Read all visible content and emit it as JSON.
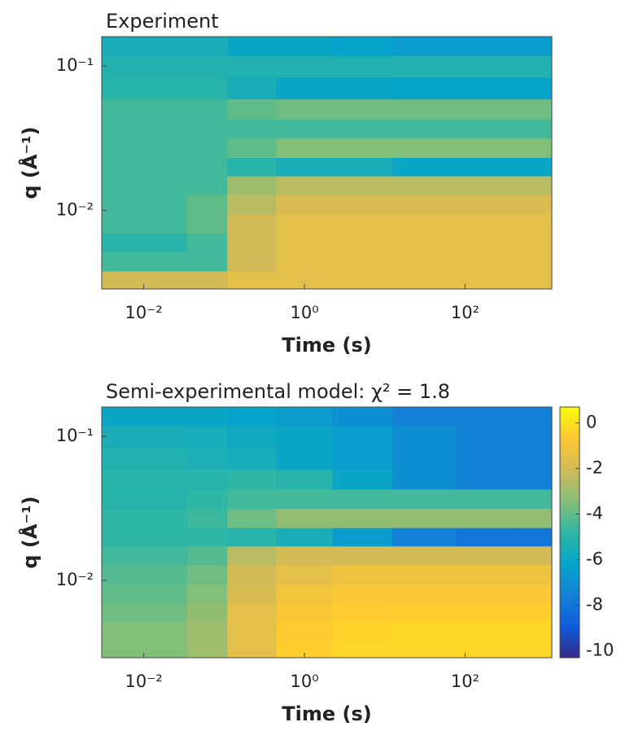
{
  "chart_data": [
    {
      "type": "heatmap",
      "title": "Experiment",
      "xlabel": "Time (s)",
      "ylabel": "q (Å⁻¹)",
      "xscale": "log",
      "yscale": "log",
      "colormap": "parula",
      "clim": [
        -10.3,
        0.7
      ],
      "xlim": [
        0.003,
        1200
      ],
      "ylim": [
        0.00285,
        0.16
      ],
      "xticks": [
        {
          "value": 0.01,
          "label": "10⁻²"
        },
        {
          "value": 1,
          "label": "10⁰"
        },
        {
          "value": 100,
          "label": "10²"
        }
      ],
      "yticks": [
        {
          "value": 0.01,
          "label": "10⁻²"
        },
        {
          "value": 0.1,
          "label": "10⁻¹"
        }
      ],
      "x": [
        0.005,
        0.02,
        0.06,
        0.2,
        1,
        5,
        30,
        200,
        900
      ],
      "y": [
        0.0032,
        0.0045,
        0.006,
        0.008,
        0.011,
        0.015,
        0.02,
        0.027,
        0.037,
        0.05,
        0.07,
        0.1,
        0.14
      ],
      "z": [
        [
          -2,
          -2,
          -2,
          -1.5,
          -1.5,
          -1.5,
          -1.5,
          -1.5,
          -1.5
        ],
        [
          -4.5,
          -4.5,
          -4.5,
          -2,
          -1.5,
          -1.5,
          -1.5,
          -1.5,
          -1.5
        ],
        [
          -5,
          -5,
          -4.5,
          -2,
          -1.5,
          -1.5,
          -1.5,
          -1.5,
          -1.5
        ],
        [
          -4.5,
          -4.5,
          -4,
          -2,
          -1.5,
          -1.5,
          -1.5,
          -1.5,
          -1.5
        ],
        [
          -4.5,
          -4.5,
          -4,
          -2.5,
          -1.8,
          -1.8,
          -1.8,
          -1.8,
          -1.8
        ],
        [
          -4.5,
          -4.5,
          -4.5,
          -3,
          -2.5,
          -2.5,
          -2.5,
          -2.5,
          -2.5
        ],
        [
          -4.5,
          -4.5,
          -4.5,
          -5,
          -5.5,
          -5.5,
          -6,
          -6,
          -6
        ],
        [
          -4.5,
          -4.5,
          -4.5,
          -4,
          -3.5,
          -3.5,
          -3.5,
          -3.5,
          -3.5
        ],
        [
          -4.5,
          -4.5,
          -4.5,
          -4.5,
          -4.5,
          -4.5,
          -4.5,
          -4.5,
          -4.5
        ],
        [
          -4.5,
          -4.5,
          -4.5,
          -4,
          -3.8,
          -3.8,
          -3.8,
          -3.8,
          -3.8
        ],
        [
          -5,
          -5,
          -5,
          -5.5,
          -6,
          -6,
          -6.2,
          -6.2,
          -6.2
        ],
        [
          -5.2,
          -5.2,
          -5.2,
          -5.2,
          -5.2,
          -5.2,
          -5.2,
          -5.2,
          -5.2
        ],
        [
          -5.5,
          -5.5,
          -5.5,
          -6,
          -6,
          -6.2,
          -6.5,
          -6.5,
          -6.5
        ]
      ]
    },
    {
      "type": "heatmap",
      "title": "Semi-experimental model:  χ² = 1.8",
      "xlabel": "Time (s)",
      "ylabel": "q (Å⁻¹)",
      "xscale": "log",
      "yscale": "log",
      "colormap": "parula",
      "clim": [
        -10.3,
        0.7
      ],
      "xlim": [
        0.003,
        1200
      ],
      "ylim": [
        0.0029,
        0.16
      ],
      "xticks": [
        {
          "value": 0.01,
          "label": "10⁻²"
        },
        {
          "value": 1,
          "label": "10⁰"
        },
        {
          "value": 100,
          "label": "10²"
        }
      ],
      "yticks": [
        {
          "value": 0.01,
          "label": "10⁻²"
        },
        {
          "value": 0.1,
          "label": "10⁻¹"
        }
      ],
      "colorbar_ticks": [
        0,
        -2,
        -4,
        -6,
        -8,
        -10
      ],
      "x": [
        0.005,
        0.02,
        0.06,
        0.2,
        1,
        5,
        30,
        200,
        900
      ],
      "y": [
        0.0032,
        0.0045,
        0.006,
        0.008,
        0.011,
        0.015,
        0.02,
        0.027,
        0.037,
        0.05,
        0.07,
        0.1,
        0.14
      ],
      "z": [
        [
          -3.5,
          -3.5,
          -3,
          -1.5,
          -0.5,
          -0.3,
          -0.3,
          -0.3,
          -0.3
        ],
        [
          -3.5,
          -3.5,
          -3,
          -1.5,
          -0.6,
          -0.4,
          -0.3,
          -0.3,
          -0.3
        ],
        [
          -3.8,
          -3.8,
          -3.2,
          -1.5,
          -0.8,
          -0.6,
          -0.5,
          -0.5,
          -0.5
        ],
        [
          -4,
          -4,
          -3.5,
          -1.8,
          -1,
          -0.8,
          -0.8,
          -0.8,
          -0.8
        ],
        [
          -4.2,
          -4.2,
          -3.8,
          -2,
          -1.5,
          -1.2,
          -1.2,
          -1.2,
          -1.2
        ],
        [
          -4.5,
          -4.5,
          -4.2,
          -2.5,
          -2,
          -2,
          -2,
          -2,
          -2
        ],
        [
          -4.8,
          -4.8,
          -4.8,
          -5,
          -5.5,
          -6.5,
          -7.5,
          -8,
          -8
        ],
        [
          -4.8,
          -4.8,
          -4.6,
          -3.8,
          -3.2,
          -3.2,
          -3.2,
          -3.2,
          -3.2
        ],
        [
          -5,
          -5,
          -4.8,
          -4.5,
          -4.5,
          -4.5,
          -4.5,
          -4.5,
          -4.5
        ],
        [
          -5,
          -5,
          -5,
          -4.8,
          -5,
          -6,
          -7,
          -7.5,
          -7.5
        ],
        [
          -5.2,
          -5.2,
          -5.4,
          -5.6,
          -6,
          -6.5,
          -7,
          -7.5,
          -7.5
        ],
        [
          -5.5,
          -5.5,
          -5.6,
          -5.8,
          -6,
          -6.5,
          -7,
          -7.5,
          -7.5
        ],
        [
          -6,
          -6,
          -6,
          -6.2,
          -6.5,
          -7,
          -7.5,
          -7.5,
          -7.5
        ]
      ]
    }
  ]
}
